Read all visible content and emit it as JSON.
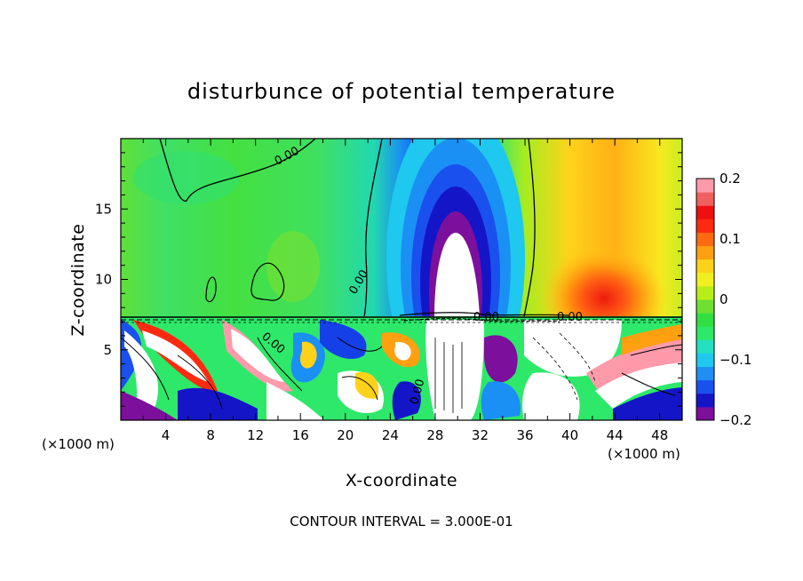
{
  "chart_data": {
    "type": "heatmap",
    "title": "disturbunce of potential temperature",
    "xlabel": "X-coordinate",
    "ylabel": "Z-coordinate",
    "x_unit": "(×1000 m)",
    "x_ticks": [
      "4",
      "8",
      "12",
      "16",
      "20",
      "24",
      "28",
      "32",
      "36",
      "40",
      "44",
      "48"
    ],
    "y_ticks": [
      "5",
      "10",
      "15"
    ],
    "xlim": [
      0,
      50
    ],
    "ylim": [
      0,
      20
    ],
    "colorbar": {
      "range": [
        -0.2,
        0.2
      ],
      "tick_labels": [
        "0.2",
        "0.1",
        "0",
        "−0.1",
        "−0.2"
      ],
      "colors": [
        "#7c0f9c",
        "#1515c8",
        "#1a50ee",
        "#1f8ef5",
        "#1ec8ee",
        "#22e0c0",
        "#2ee86a",
        "#30e040",
        "#6fe030",
        "#b8ee18",
        "#f0f020",
        "#ffd21a",
        "#ffa010",
        "#ff6a10",
        "#ff2a10",
        "#ee1010",
        "#f06060",
        "#ff9aaa"
      ]
    },
    "contour_label": "0.00",
    "contour_interval_text": "CONTOUR INTERVAL = 3.000E-01",
    "features": {
      "cold_plume_center_x": 30,
      "warm_region_center_x": 43,
      "inversion_height_z": 7.5
    }
  }
}
